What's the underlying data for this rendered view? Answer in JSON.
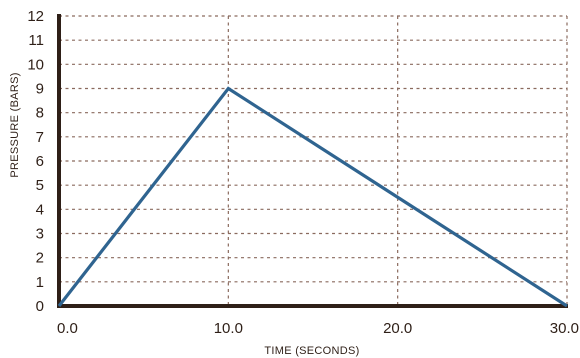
{
  "chart_data": {
    "type": "line",
    "title": "",
    "xlabel": "TIME (SECONDS)",
    "ylabel": "PRESSURE (BARS)",
    "xlim": [
      0,
      30
    ],
    "ylim": [
      0,
      12
    ],
    "grid": true,
    "x_ticks": [
      "0.0",
      "10.0",
      "20.0",
      "30.0"
    ],
    "y_ticks": [
      "0",
      "1",
      "2",
      "3",
      "4",
      "5",
      "6",
      "7",
      "8",
      "9",
      "10",
      "11",
      "12"
    ],
    "x": [
      0,
      10,
      30
    ],
    "y": [
      0,
      9,
      0
    ],
    "colors": {
      "series": "#2f6490",
      "axis": "#2e1f17",
      "grid": "#8a6a5e"
    }
  }
}
